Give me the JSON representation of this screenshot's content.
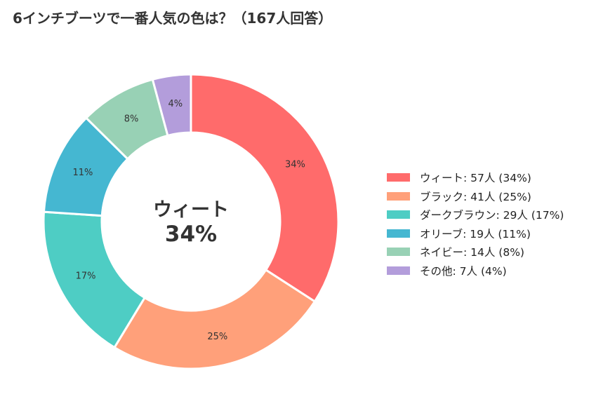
{
  "chart_data": {
    "type": "pie",
    "donut": true,
    "title": "6インチブーツで一番人気の色は？（167人回答）",
    "center_label": {
      "name": "ウィート",
      "percent": "34%"
    },
    "legend_position": "right",
    "slices": [
      {
        "name": "ウィート",
        "value": 57,
        "percent": 34,
        "label": "34%",
        "legend": "ウィート:  57人 (34%)",
        "color": "#FF6B6B"
      },
      {
        "name": "ブラック",
        "value": 41,
        "percent": 25,
        "label": "25%",
        "legend": "ブラック:  41人 (25%)",
        "color": "#FFA07A"
      },
      {
        "name": "ダークブラウン",
        "value": 29,
        "percent": 17,
        "label": "17%",
        "legend": "ダークブラウン:  29人 (17%)",
        "color": "#4ECDC4"
      },
      {
        "name": "オリーブ",
        "value": 19,
        "percent": 11,
        "label": "11%",
        "legend": "オリーブ:  19人 (11%)",
        "color": "#45B7D1"
      },
      {
        "name": "ネイビー",
        "value": 14,
        "percent": 8,
        "label": "8%",
        "legend": "ネイビー:  14人 (8%)",
        "color": "#98D1B5"
      },
      {
        "name": "その他",
        "value": 7,
        "percent": 4,
        "label": "4%",
        "legend": "その他:  7人 (4%)",
        "color": "#B39DDB"
      }
    ]
  }
}
